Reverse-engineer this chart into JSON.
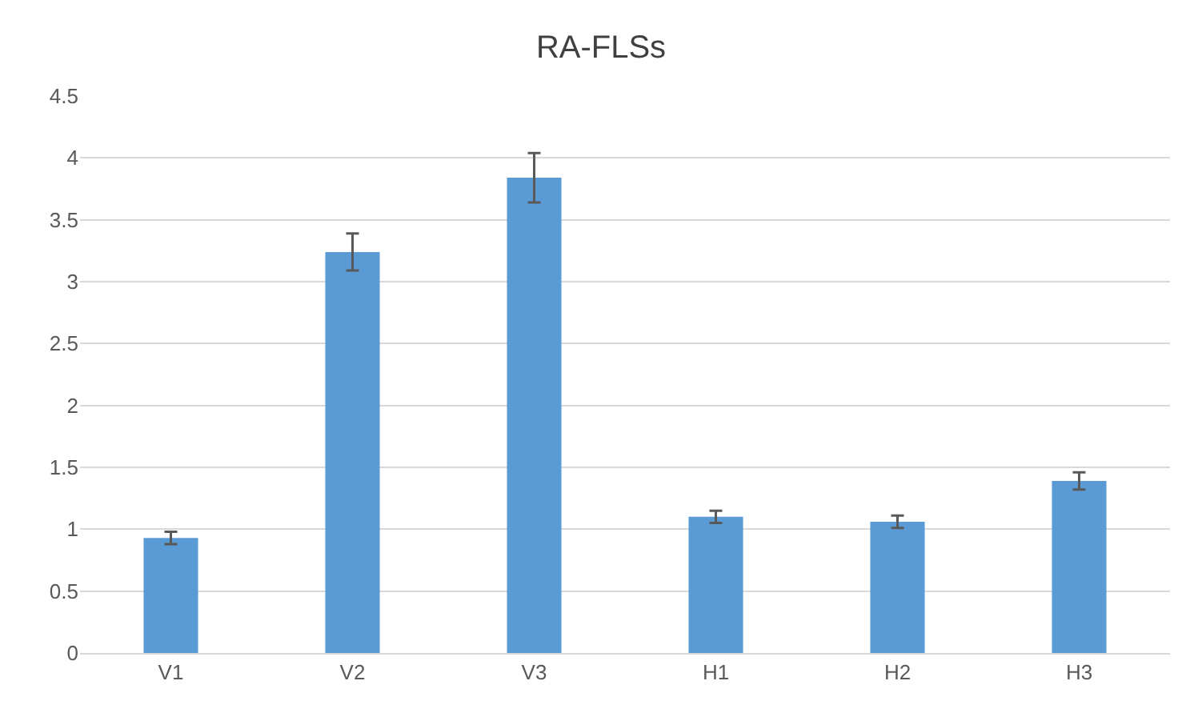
{
  "chart_data": {
    "type": "bar",
    "title": "RA-FLSs",
    "categories": [
      "V1",
      "V2",
      "V3",
      "H1",
      "H2",
      "H3"
    ],
    "values": [
      0.93,
      3.24,
      3.84,
      1.1,
      1.06,
      1.39
    ],
    "errors": [
      0.05,
      0.15,
      0.2,
      0.05,
      0.05,
      0.07
    ],
    "color": "#5b9bd5",
    "ylim": [
      0,
      4.5
    ],
    "yticks": [
      0,
      0.5,
      1,
      1.5,
      2,
      2.5,
      3,
      3.5,
      4,
      4.5
    ],
    "grid": "y"
  }
}
